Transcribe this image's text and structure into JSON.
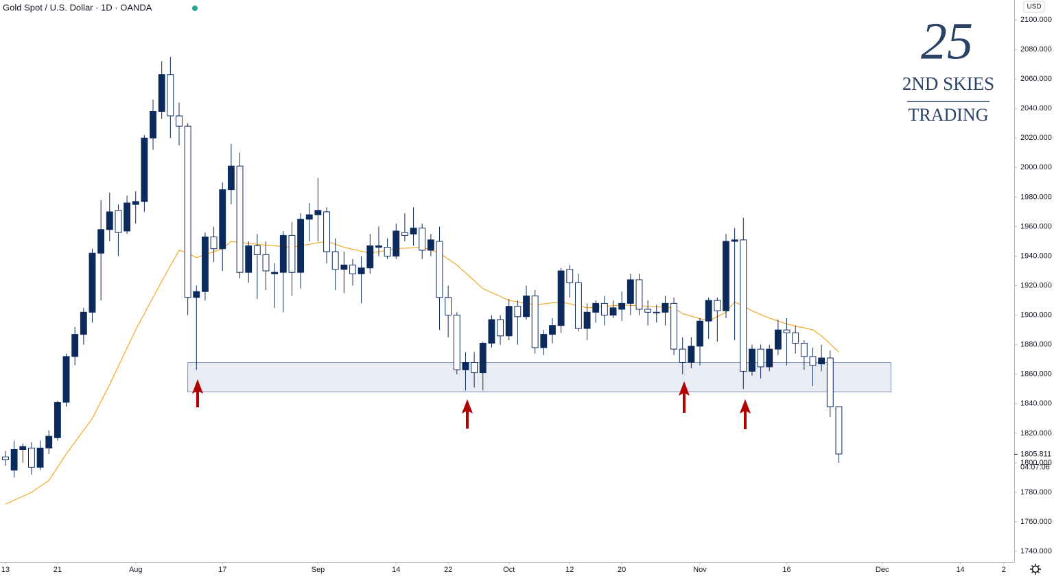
{
  "chart_data": {
    "type": "candlestick",
    "title": "Gold Spot / U.S. Dollar · 1D · OANDA",
    "currency": "USD",
    "logo": {
      "mark": "25",
      "line1": "2ND SKIES",
      "line2": "TRADING"
    },
    "up_color": "#0d2a5c",
    "down_color": "#ffffff",
    "outline_color": "#0d2a5c",
    "open": [
      1804,
      1795,
      1809,
      1810,
      1797,
      1810,
      1817,
      1841,
      1872,
      1887,
      1902,
      1942,
      1958,
      1971,
      1957,
      1975,
      1977,
      2020,
      2038,
      2063,
      2035,
      2028,
      1912,
      1916,
      1953,
      1945,
      1985,
      2001,
      1929,
      1947,
      1941,
      1928,
      1929,
      1954,
      1929,
      1965,
      1968,
      1970,
      1943,
      1931,
      1934,
      1928,
      1932,
      1946,
      1946,
      1940,
      1956,
      1955,
      1959,
      1944,
      1950,
      1912,
      1900,
      1863,
      1868,
      1861,
      1881,
      1897,
      1886,
      1906,
      1899,
      1913,
      1878,
      1887,
      1893,
      1931,
      1922,
      1891,
      1902,
      1908,
      1900,
      1904,
      1908,
      1924,
      1904,
      1902,
      1902,
      1908,
      1877,
      1868,
      1879,
      1896,
      1910,
      1903,
      1950,
      1951,
      1862,
      1877,
      1865,
      1877,
      1890,
      1888,
      1881,
      1872,
      1867,
      1871,
      1838
    ],
    "high": [
      1808,
      1815,
      1813,
      1814,
      1815,
      1822,
      1842,
      1874,
      1892,
      1905,
      1945,
      1978,
      1983,
      1975,
      1981,
      1984,
      2022,
      2046,
      2072,
      2075,
      2044,
      2030,
      1920,
      1956,
      1960,
      1990,
      2016,
      2010,
      1950,
      1955,
      1950,
      1935,
      1957,
      1963,
      1969,
      1976,
      1993,
      1973,
      1952,
      1943,
      1938,
      1940,
      1955,
      1960,
      1952,
      1962,
      1969,
      1973,
      1962,
      1955,
      1960,
      1920,
      1902,
      1875,
      1875,
      1882,
      1900,
      1900,
      1911,
      1910,
      1920,
      1917,
      1890,
      1898,
      1932,
      1934,
      1928,
      1908,
      1910,
      1913,
      1910,
      1916,
      1928,
      1928,
      1910,
      1907,
      1913,
      1912,
      1885,
      1885,
      1898,
      1912,
      1912,
      1955,
      1959,
      1966,
      1880,
      1880,
      1880,
      1897,
      1898,
      1893,
      1883,
      1878,
      1880,
      1876,
      1838
    ],
    "low": [
      1798,
      1790,
      1800,
      1792,
      1795,
      1806,
      1815,
      1838,
      1866,
      1880,
      1895,
      1910,
      1950,
      1940,
      1955,
      1962,
      1970,
      2012,
      2033,
      2020,
      2015,
      1900,
      1863,
      1910,
      1936,
      1930,
      1975,
      1925,
      1922,
      1911,
      1917,
      1905,
      1902,
      1913,
      1918,
      1950,
      1950,
      1935,
      1917,
      1915,
      1920,
      1908,
      1928,
      1940,
      1938,
      1938,
      1950,
      1947,
      1938,
      1940,
      1890,
      1885,
      1860,
      1849,
      1851,
      1849,
      1878,
      1880,
      1883,
      1880,
      1897,
      1874,
      1873,
      1881,
      1888,
      1912,
      1889,
      1883,
      1895,
      1893,
      1898,
      1896,
      1900,
      1900,
      1893,
      1895,
      1893,
      1873,
      1860,
      1864,
      1866,
      1884,
      1882,
      1898,
      1883,
      1850,
      1859,
      1857,
      1862,
      1873,
      1866,
      1874,
      1863,
      1852,
      1862,
      1831,
      1800
    ],
    "close": [
      1802,
      1809,
      1811,
      1797,
      1810,
      1818,
      1841,
      1872,
      1887,
      1902,
      1942,
      1958,
      1970,
      1956,
      1976,
      1977,
      2020,
      2038,
      2063,
      2035,
      2028,
      1912,
      1916,
      1953,
      1945,
      1985,
      2001,
      1929,
      1947,
      1941,
      1930,
      1929,
      1954,
      1929,
      1965,
      1968,
      1971,
      1943,
      1931,
      1934,
      1928,
      1932,
      1947,
      1947,
      1940,
      1957,
      1954,
      1959,
      1944,
      1951,
      1912,
      1900,
      1863,
      1868,
      1861,
      1881,
      1897,
      1886,
      1906,
      1899,
      1913,
      1878,
      1887,
      1893,
      1930,
      1922,
      1891,
      1902,
      1908,
      1900,
      1905,
      1908,
      1924,
      1904,
      1902,
      1901.5,
      1908,
      1877,
      1868,
      1879,
      1896,
      1910,
      1903,
      1950,
      1951,
      1862,
      1877,
      1865,
      1877,
      1890,
      1888,
      1881,
      1872,
      1866,
      1871,
      1838,
      1806
    ],
    "ma": {
      "color": "#f5a623",
      "x": [
        0,
        3,
        5,
        7,
        10,
        12,
        15,
        18,
        20,
        21,
        22,
        25,
        26,
        29,
        33,
        35,
        37,
        39,
        42,
        45,
        48,
        50,
        52,
        55,
        58,
        61,
        64,
        67,
        71,
        74,
        77,
        78,
        81,
        83,
        84,
        86,
        88,
        90,
        93,
        94,
        96
      ],
      "values": [
        1772,
        1780,
        1788,
        1806,
        1830,
        1853,
        1890,
        1923,
        1944,
        1942,
        1939,
        1945,
        1950,
        1948,
        1946,
        1948,
        1950,
        1946,
        1942,
        1945,
        1946,
        1942,
        1934,
        1918,
        1910,
        1907,
        1909,
        1905,
        1907,
        1906,
        1905,
        1901,
        1896,
        1902,
        1909,
        1903,
        1898,
        1894,
        1890,
        1886,
        1875
      ]
    },
    "zone": {
      "x": [
        21,
        102
      ],
      "y": [
        1848,
        1868
      ],
      "color": "#dfe5ee"
    },
    "last_price": 1805.811,
    "countdown": "04:07:06",
    "xlim": [
      -0.63,
      116.2
    ],
    "xticks": [
      {
        "value": 0,
        "label": "13"
      },
      {
        "value": 6,
        "label": "21"
      },
      {
        "value": 15,
        "label": "Aug"
      },
      {
        "value": 25,
        "label": "17"
      },
      {
        "value": 36,
        "label": "Sep"
      },
      {
        "value": 45,
        "label": "14"
      },
      {
        "value": 51,
        "label": "22"
      },
      {
        "value": 58,
        "label": "Oct"
      },
      {
        "value": 65,
        "label": "12"
      },
      {
        "value": 71,
        "label": "20"
      },
      {
        "value": 80,
        "label": "Nov"
      },
      {
        "value": 90,
        "label": "16"
      },
      {
        "value": 101,
        "label": "Dec"
      },
      {
        "value": 110,
        "label": "14"
      },
      {
        "value": 115,
        "label": "2"
      }
    ],
    "ylim": [
      1732.6,
      2113.5
    ],
    "yticks": [
      {
        "value": 1740,
        "label": "1740.000"
      },
      {
        "value": 1760,
        "label": "1760.000"
      },
      {
        "value": 1780,
        "label": "1780.000"
      },
      {
        "value": 1800,
        "label": "1800.000"
      },
      {
        "value": 1820,
        "label": "1820.000"
      },
      {
        "value": 1840,
        "label": "1840.000"
      },
      {
        "value": 1860,
        "label": "1860.000"
      },
      {
        "value": 1880,
        "label": "1880.000"
      },
      {
        "value": 1900,
        "label": "1900.000"
      },
      {
        "value": 1920,
        "label": "1920.000"
      },
      {
        "value": 1940,
        "label": "1940.000"
      },
      {
        "value": 1960,
        "label": "1960.000"
      },
      {
        "value": 1980,
        "label": "1980.000"
      },
      {
        "value": 2000,
        "label": "2000.000"
      },
      {
        "value": 2020,
        "label": "2020.000"
      },
      {
        "value": 2040,
        "label": "2040.000"
      },
      {
        "value": 2060,
        "label": "2060.000"
      },
      {
        "value": 2080,
        "label": "2080.000"
      },
      {
        "value": 2100,
        "label": "2100.000"
      }
    ],
    "grid": false
  }
}
